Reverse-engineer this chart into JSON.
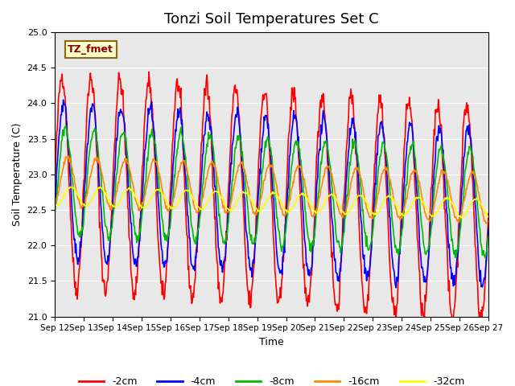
{
  "title": "Tonzi Soil Temperatures Set C",
  "xlabel": "Time",
  "ylabel": "Soil Temperature (C)",
  "ylim": [
    21.0,
    25.0
  ],
  "yticks": [
    21.0,
    21.5,
    22.0,
    22.5,
    23.0,
    23.5,
    24.0,
    24.5,
    25.0
  ],
  "bg_color": "#e8e8e8",
  "annotation_text": "TZ_fmet",
  "annotation_bg": "#ffffcc",
  "annotation_border": "#8B6914",
  "line_colors": {
    "-2cm": "#ff0000",
    "-4cm": "#0000ff",
    "-8cm": "#00bb00",
    "-16cm": "#ff8800",
    "-32cm": "#ffff00"
  },
  "legend_labels": [
    "-2cm",
    "-4cm",
    "-8cm",
    "-16cm",
    "-32cm"
  ],
  "n_days": 15,
  "start_day": 12,
  "series_params": {
    "-2cm": {
      "mean": 22.9,
      "amp": 1.5,
      "phase": 0.0,
      "trend": -0.03
    },
    "-4cm": {
      "mean": 22.9,
      "amp": 1.1,
      "phase": 0.3,
      "trend": -0.025
    },
    "-8cm": {
      "mean": 22.9,
      "amp": 0.75,
      "phase": 0.7,
      "trend": -0.02
    },
    "-16cm": {
      "mean": 22.9,
      "amp": 0.35,
      "phase": 1.2,
      "trend": -0.015
    },
    "-32cm": {
      "mean": 22.7,
      "amp": 0.13,
      "phase": 2.0,
      "trend": -0.012
    }
  }
}
